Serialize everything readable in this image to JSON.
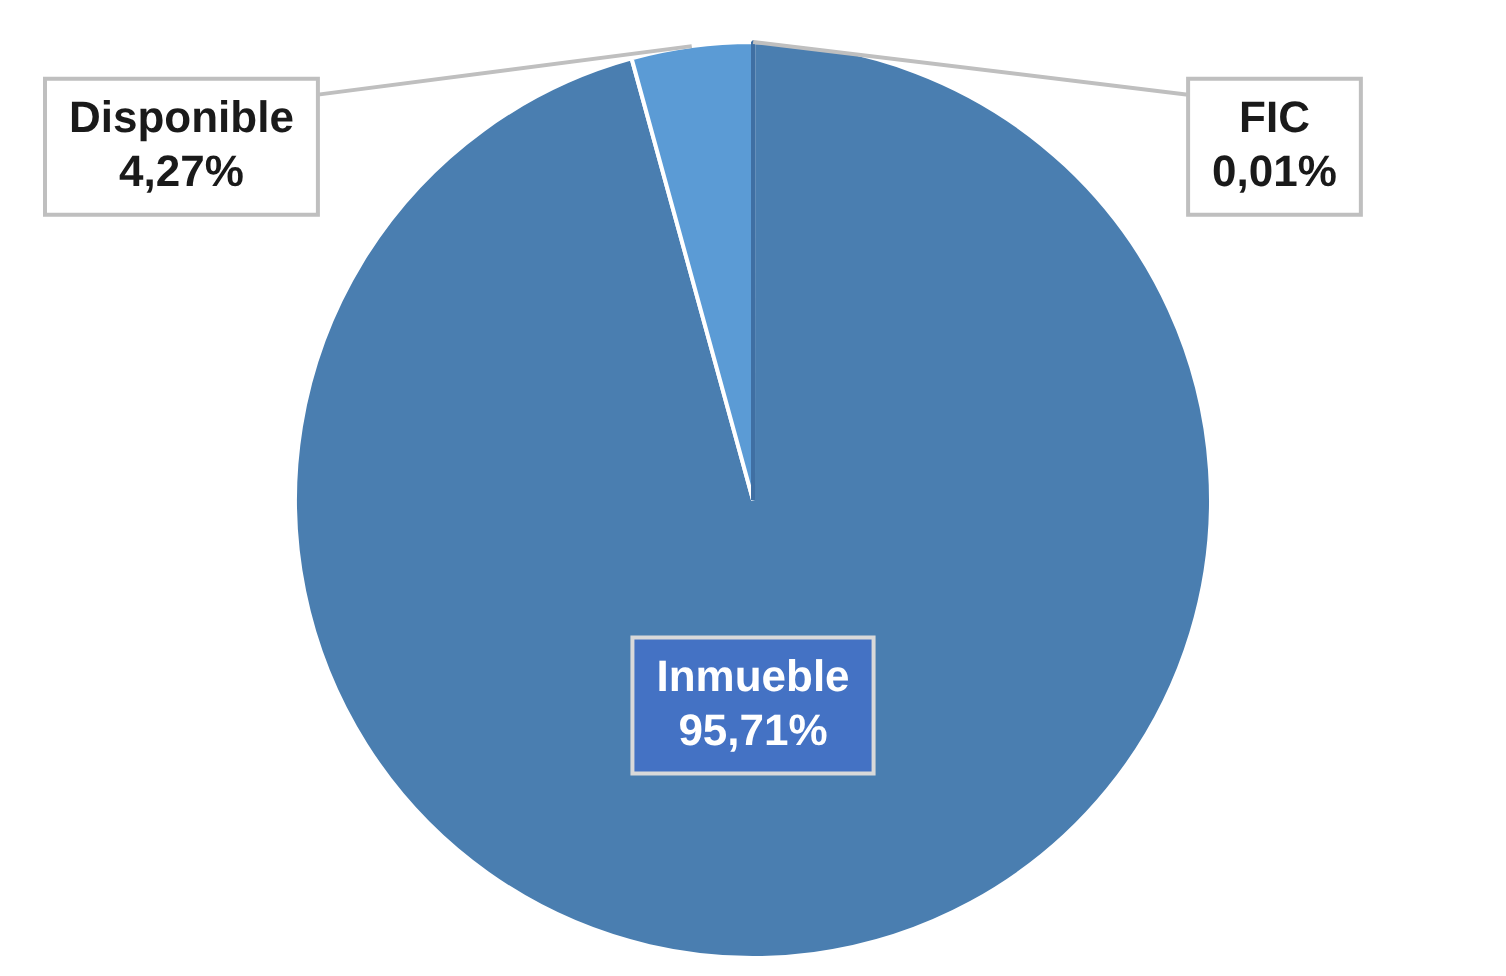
{
  "chart_data": {
    "type": "pie",
    "categories": [
      "FIC",
      "Inmueble",
      "Disponible"
    ],
    "values": [
      0.01,
      95.71,
      4.27
    ],
    "colors": [
      "#3f6fa3",
      "#4a7eb0",
      "#5b9bd5"
    ],
    "value_labels": [
      "0,01%",
      "95,71%",
      "4,27%"
    ],
    "legend": false
  }
}
